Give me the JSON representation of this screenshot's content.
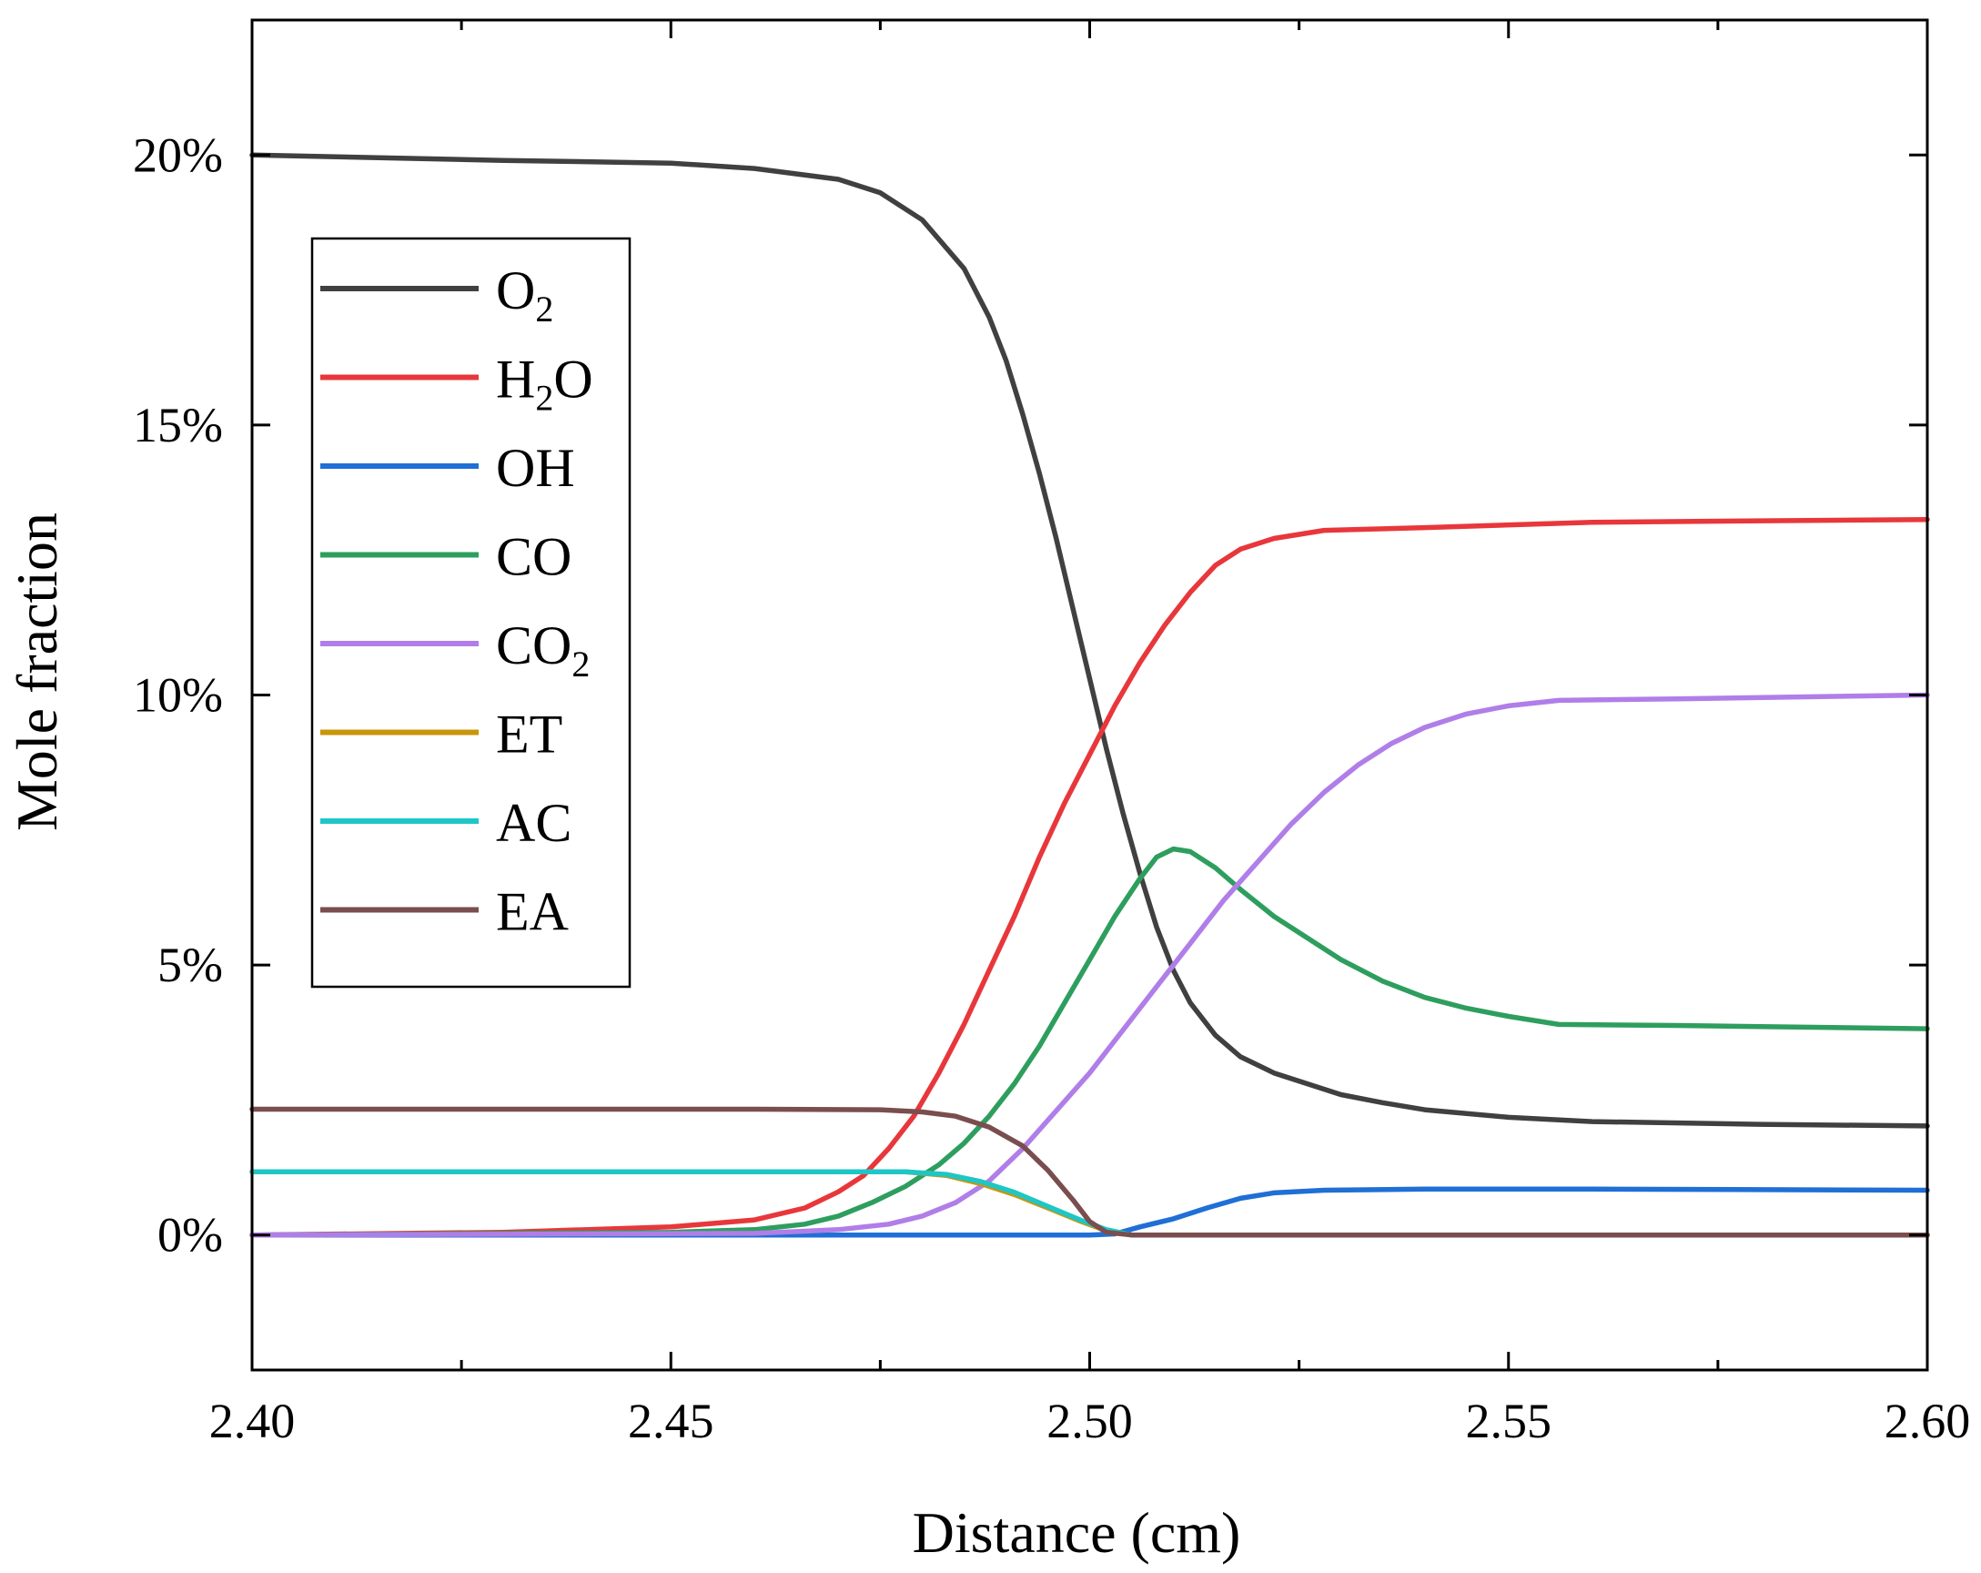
{
  "chart_data": {
    "type": "line",
    "title": "",
    "xlabel": "Distance (cm)",
    "ylabel": "Mole fraction",
    "xlim": [
      2.4,
      2.6
    ],
    "ylim": [
      -0.025,
      0.225
    ],
    "x_ticks": [
      2.4,
      2.45,
      2.5,
      2.55,
      2.6
    ],
    "x_tick_labels": [
      "2.40",
      "2.45",
      "2.50",
      "2.55",
      "2.60"
    ],
    "y_ticks": [
      0,
      0.05,
      0.1,
      0.15,
      0.2
    ],
    "y_tick_labels": [
      "0%",
      "5%",
      "10%",
      "15%",
      "20%"
    ],
    "grid": false,
    "legend_position": "upper-left",
    "series": [
      {
        "key": "O2",
        "name": "O",
        "sub": "2",
        "color": "#404040",
        "points": [
          [
            2.4,
            0.2
          ],
          [
            2.43,
            0.199
          ],
          [
            2.45,
            0.1985
          ],
          [
            2.46,
            0.1975
          ],
          [
            2.47,
            0.1955
          ],
          [
            2.475,
            0.193
          ],
          [
            2.48,
            0.188
          ],
          [
            2.485,
            0.179
          ],
          [
            2.488,
            0.17
          ],
          [
            2.49,
            0.162
          ],
          [
            2.492,
            0.152
          ],
          [
            2.494,
            0.141
          ],
          [
            2.496,
            0.129
          ],
          [
            2.498,
            0.116
          ],
          [
            2.5,
            0.103
          ],
          [
            2.502,
            0.09
          ],
          [
            2.504,
            0.078
          ],
          [
            2.506,
            0.067
          ],
          [
            2.508,
            0.057
          ],
          [
            2.51,
            0.049
          ],
          [
            2.512,
            0.043
          ],
          [
            2.515,
            0.037
          ],
          [
            2.518,
            0.033
          ],
          [
            2.522,
            0.03
          ],
          [
            2.526,
            0.028
          ],
          [
            2.53,
            0.026
          ],
          [
            2.535,
            0.0245
          ],
          [
            2.54,
            0.0232
          ],
          [
            2.55,
            0.0218
          ],
          [
            2.56,
            0.021
          ],
          [
            2.58,
            0.0205
          ],
          [
            2.6,
            0.0202
          ]
        ]
      },
      {
        "key": "H2O",
        "name": "H",
        "sub": "2",
        "suffix": "O",
        "color": "#e8373b",
        "points": [
          [
            2.4,
            0.0
          ],
          [
            2.43,
            0.0005
          ],
          [
            2.45,
            0.0015
          ],
          [
            2.46,
            0.0028
          ],
          [
            2.466,
            0.005
          ],
          [
            2.47,
            0.008
          ],
          [
            2.473,
            0.011
          ],
          [
            2.476,
            0.016
          ],
          [
            2.479,
            0.022
          ],
          [
            2.482,
            0.03
          ],
          [
            2.485,
            0.039
          ],
          [
            2.488,
            0.049
          ],
          [
            2.491,
            0.059
          ],
          [
            2.494,
            0.07
          ],
          [
            2.497,
            0.08
          ],
          [
            2.5,
            0.089
          ],
          [
            2.503,
            0.098
          ],
          [
            2.506,
            0.106
          ],
          [
            2.509,
            0.113
          ],
          [
            2.512,
            0.119
          ],
          [
            2.515,
            0.124
          ],
          [
            2.518,
            0.127
          ],
          [
            2.522,
            0.129
          ],
          [
            2.528,
            0.1305
          ],
          [
            2.54,
            0.131
          ],
          [
            2.56,
            0.132
          ],
          [
            2.6,
            0.1325
          ]
        ]
      },
      {
        "key": "OH",
        "name": "OH",
        "color": "#1f6fd6",
        "points": [
          [
            2.4,
            0.0
          ],
          [
            2.48,
            0.0
          ],
          [
            2.5,
            0.0
          ],
          [
            2.503,
            0.0002
          ],
          [
            2.506,
            0.0015
          ],
          [
            2.51,
            0.003
          ],
          [
            2.514,
            0.005
          ],
          [
            2.518,
            0.0068
          ],
          [
            2.522,
            0.0078
          ],
          [
            2.528,
            0.0083
          ],
          [
            2.54,
            0.0085
          ],
          [
            2.56,
            0.0085
          ],
          [
            2.6,
            0.0083
          ]
        ]
      },
      {
        "key": "CO",
        "name": "CO",
        "color": "#2e9e5e",
        "points": [
          [
            2.4,
            0.0
          ],
          [
            2.45,
            0.0005
          ],
          [
            2.46,
            0.001
          ],
          [
            2.466,
            0.002
          ],
          [
            2.47,
            0.0035
          ],
          [
            2.474,
            0.006
          ],
          [
            2.478,
            0.009
          ],
          [
            2.482,
            0.013
          ],
          [
            2.485,
            0.017
          ],
          [
            2.488,
            0.022
          ],
          [
            2.491,
            0.028
          ],
          [
            2.494,
            0.035
          ],
          [
            2.497,
            0.043
          ],
          [
            2.5,
            0.051
          ],
          [
            2.503,
            0.059
          ],
          [
            2.506,
            0.066
          ],
          [
            2.508,
            0.07
          ],
          [
            2.51,
            0.0715
          ],
          [
            2.512,
            0.071
          ],
          [
            2.515,
            0.068
          ],
          [
            2.518,
            0.064
          ],
          [
            2.522,
            0.059
          ],
          [
            2.526,
            0.055
          ],
          [
            2.53,
            0.051
          ],
          [
            2.535,
            0.047
          ],
          [
            2.54,
            0.044
          ],
          [
            2.545,
            0.042
          ],
          [
            2.55,
            0.0405
          ],
          [
            2.556,
            0.039
          ],
          [
            2.57,
            0.0388
          ],
          [
            2.6,
            0.0382
          ]
        ]
      },
      {
        "key": "CO2",
        "name": "CO",
        "sub": "2",
        "color": "#b07ee8",
        "points": [
          [
            2.4,
            0.0
          ],
          [
            2.46,
            0.0003
          ],
          [
            2.47,
            0.001
          ],
          [
            2.476,
            0.002
          ],
          [
            2.48,
            0.0035
          ],
          [
            2.484,
            0.006
          ],
          [
            2.488,
            0.01
          ],
          [
            2.492,
            0.016
          ],
          [
            2.496,
            0.023
          ],
          [
            2.5,
            0.03
          ],
          [
            2.504,
            0.038
          ],
          [
            2.508,
            0.046
          ],
          [
            2.512,
            0.054
          ],
          [
            2.516,
            0.062
          ],
          [
            2.52,
            0.069
          ],
          [
            2.524,
            0.076
          ],
          [
            2.528,
            0.082
          ],
          [
            2.532,
            0.087
          ],
          [
            2.536,
            0.091
          ],
          [
            2.54,
            0.094
          ],
          [
            2.545,
            0.0965
          ],
          [
            2.55,
            0.098
          ],
          [
            2.556,
            0.099
          ],
          [
            2.57,
            0.0993
          ],
          [
            2.6,
            0.1
          ]
        ]
      },
      {
        "key": "ET",
        "name": "ET",
        "color": "#c9960a",
        "points": [
          [
            2.4,
            0.0117
          ],
          [
            2.46,
            0.0117
          ],
          [
            2.478,
            0.0117
          ],
          [
            2.483,
            0.011
          ],
          [
            2.487,
            0.0095
          ],
          [
            2.491,
            0.0075
          ],
          [
            2.495,
            0.005
          ],
          [
            2.499,
            0.0025
          ],
          [
            2.502,
            0.0008
          ],
          [
            2.505,
            0.0
          ],
          [
            2.6,
            0.0
          ]
        ]
      },
      {
        "key": "AC",
        "name": "AC",
        "color": "#1fc6c6",
        "points": [
          [
            2.4,
            0.0117
          ],
          [
            2.46,
            0.0117
          ],
          [
            2.478,
            0.0117
          ],
          [
            2.483,
            0.0112
          ],
          [
            2.487,
            0.0099
          ],
          [
            2.491,
            0.0079
          ],
          [
            2.495,
            0.0053
          ],
          [
            2.499,
            0.0027
          ],
          [
            2.502,
            0.001
          ],
          [
            2.505,
            0.0
          ],
          [
            2.6,
            0.0
          ]
        ]
      },
      {
        "key": "EA",
        "name": "EA",
        "color": "#7a4e4e",
        "points": [
          [
            2.4,
            0.0233
          ],
          [
            2.46,
            0.0233
          ],
          [
            2.475,
            0.0232
          ],
          [
            2.48,
            0.0228
          ],
          [
            2.484,
            0.022
          ],
          [
            2.488,
            0.02
          ],
          [
            2.492,
            0.0165
          ],
          [
            2.495,
            0.012
          ],
          [
            2.498,
            0.0065
          ],
          [
            2.5,
            0.0025
          ],
          [
            2.502,
            0.0005
          ],
          [
            2.505,
            0.0
          ],
          [
            2.6,
            0.0
          ]
        ]
      }
    ]
  }
}
